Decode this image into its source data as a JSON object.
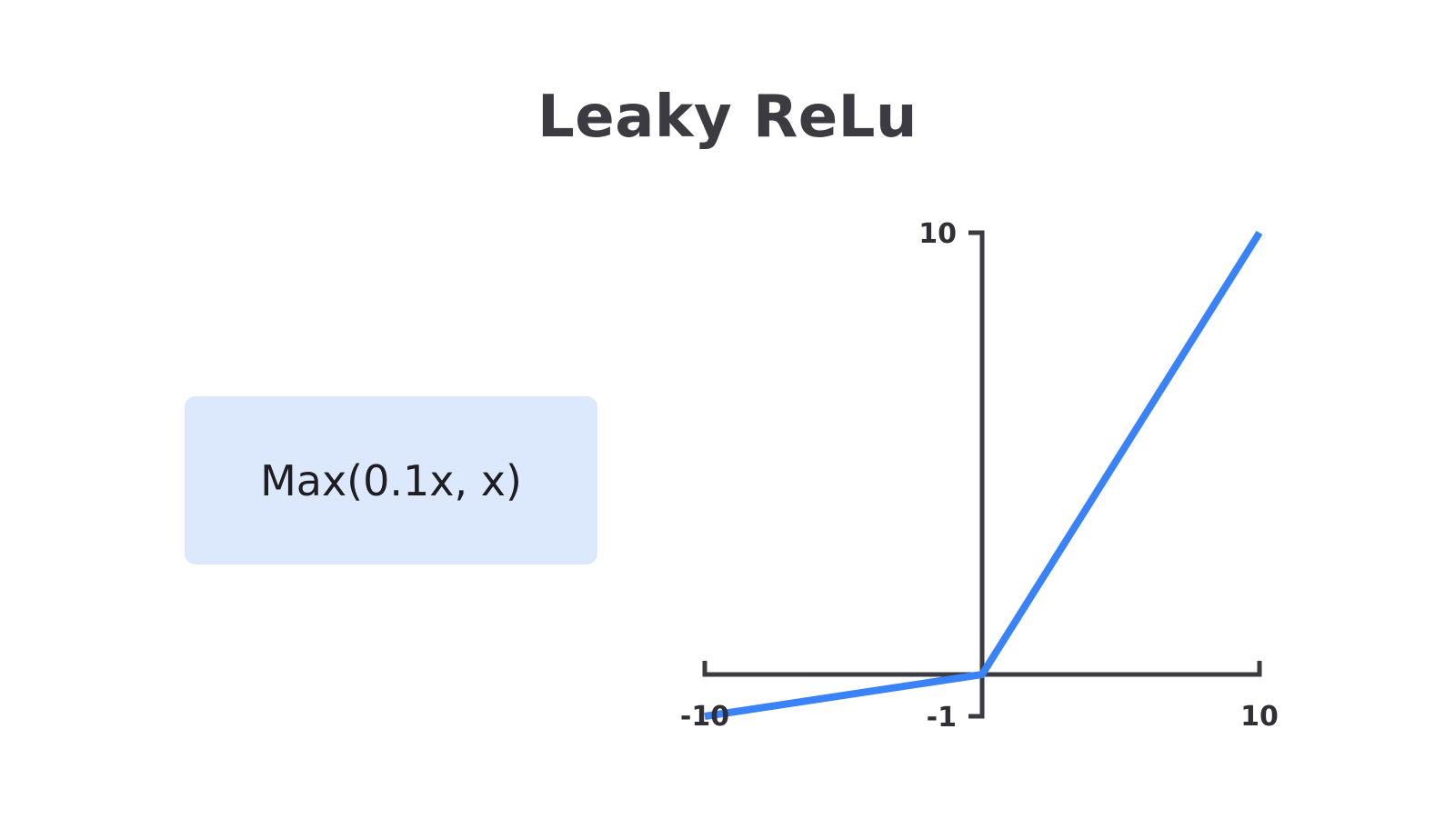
{
  "title": "Leaky ReLu",
  "formula": "Max(0.1x, x)",
  "colors": {
    "axis": "#3b3b41",
    "line": "#3a82f7",
    "formula_bg": "#dce9fc",
    "title": "#3b3b41"
  },
  "chart_data": {
    "type": "line",
    "title": "Leaky ReLu",
    "xlabel": "",
    "ylabel": "",
    "xlim": [
      -10,
      10
    ],
    "ylim": [
      -1,
      10
    ],
    "grid": false,
    "x_ticks": [
      {
        "value": -10,
        "label": "-10"
      },
      {
        "value": 10,
        "label": "10"
      }
    ],
    "y_ticks": [
      {
        "value": -1,
        "label": "-1"
      },
      {
        "value": 10,
        "label": "10"
      }
    ],
    "series": [
      {
        "x": [
          -10,
          0,
          10
        ],
        "y": [
          -1,
          0,
          10
        ]
      }
    ]
  }
}
